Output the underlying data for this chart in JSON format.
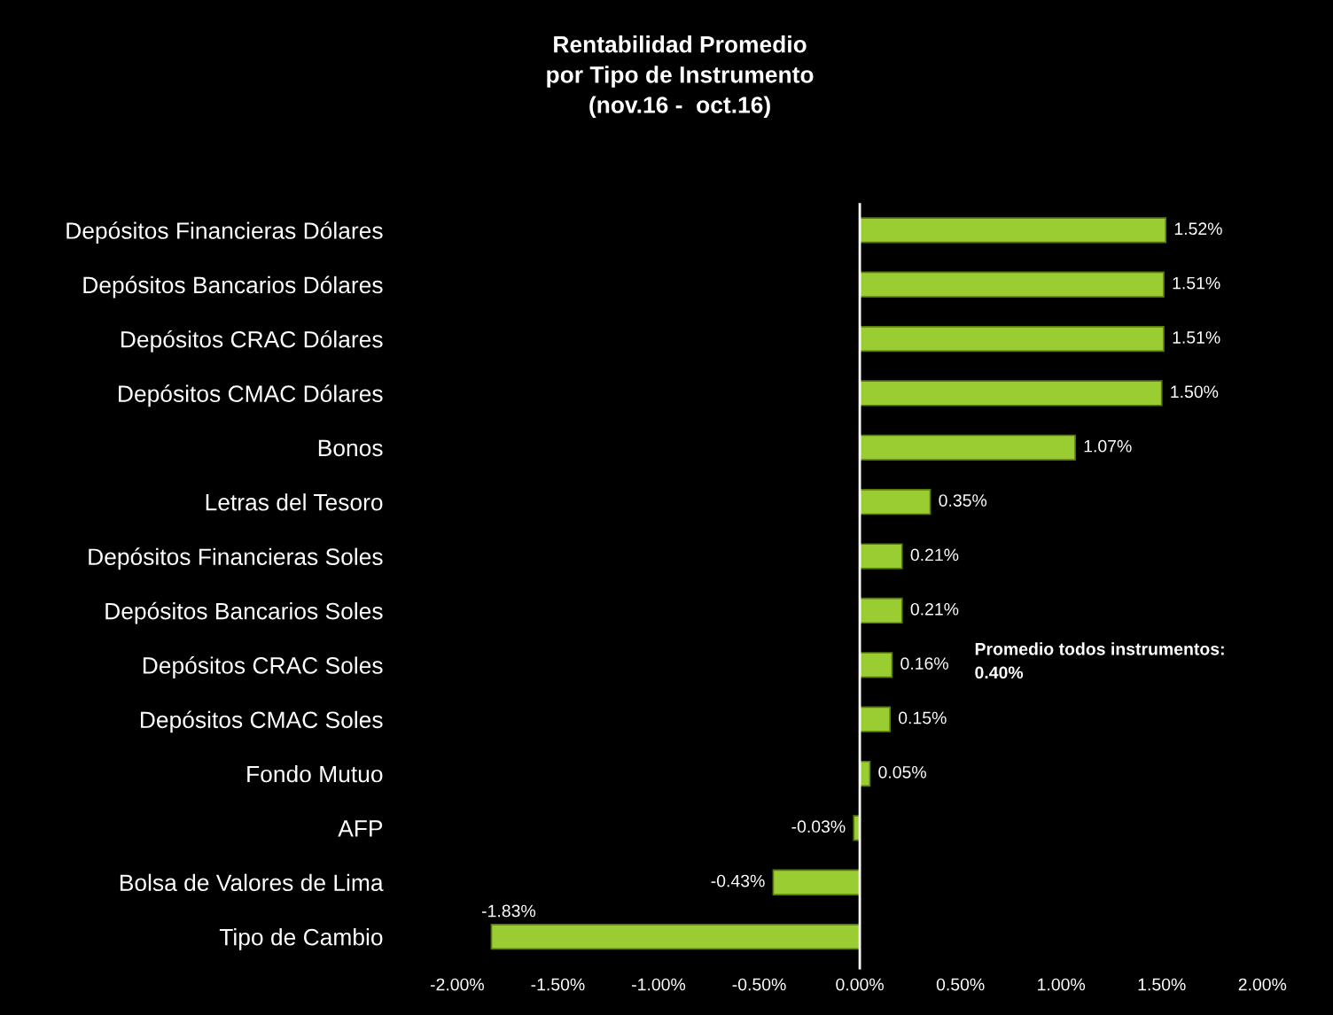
{
  "chart_data": {
    "type": "bar",
    "orientation": "horizontal",
    "title": "Rentabilidad Promedio\npor Tipo de Instrumento\n(nov.16 -  oct.16)",
    "categories": [
      "Depósitos Financieras Dólares",
      "Depósitos Bancarios Dólares",
      "Depósitos CRAC Dólares",
      "Depósitos CMAC Dólares",
      "Bonos",
      "Letras del Tesoro",
      "Depósitos Financieras Soles",
      "Depósitos Bancarios Soles",
      "Depósitos CRAC Soles",
      "Depósitos CMAC Soles",
      "Fondo Mutuo",
      "AFP",
      "Bolsa de Valores de Lima",
      "Tipo de Cambio"
    ],
    "values": [
      1.52,
      1.51,
      1.51,
      1.5,
      1.07,
      0.35,
      0.21,
      0.21,
      0.16,
      0.15,
      0.05,
      -0.03,
      -0.43,
      -1.83
    ],
    "value_labels": [
      "1.52%",
      "1.51%",
      "1.51%",
      "1.50%",
      "1.07%",
      "0.35%",
      "0.21%",
      "0.21%",
      "0.16%",
      "0.15%",
      "0.05%",
      "-0.03%",
      "-0.43%",
      "-1.83%"
    ],
    "color": "#9acd32",
    "xlim": [
      -2.0,
      2.0
    ],
    "xticks": [
      {
        "value": -2.0,
        "label": "-2.00%"
      },
      {
        "value": -1.5,
        "label": "-1.50%"
      },
      {
        "value": -1.0,
        "label": "-1.00%"
      },
      {
        "value": -0.5,
        "label": "-0.50%"
      },
      {
        "value": 0.0,
        "label": "0.00%"
      },
      {
        "value": 0.5,
        "label": "0.50%"
      },
      {
        "value": 1.0,
        "label": "1.00%"
      },
      {
        "value": 1.5,
        "label": "1.50%"
      },
      {
        "value": 2.0,
        "label": "2.00%"
      }
    ],
    "annotations": [
      "Promedio todos instrumentos:\n0.40%"
    ],
    "ref_lines": [
      {
        "axis": "x",
        "value": 0.0,
        "color": "#ffffff"
      }
    ],
    "grid": false,
    "legend": false
  }
}
